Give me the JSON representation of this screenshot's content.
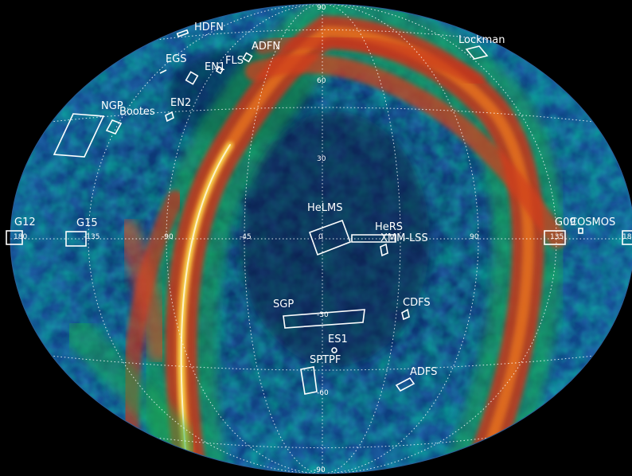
{
  "map": {
    "projection": "aitoff",
    "colors": {
      "background": "#000000",
      "low": "#06204a",
      "mid_low": "#0f5aa0",
      "mid": "#1faa55",
      "high": "#d4402a",
      "peak": "#fff25a"
    },
    "grid_labels": {
      "lat_90": "90",
      "lat_60": "60",
      "lat_30": "30",
      "lat_m30": "-30",
      "lat_m60": "-60",
      "lat_m90": "-90",
      "lon_m135": "-135",
      "lon_m90": "-90",
      "lon_m45": "-45",
      "lon_0": "0",
      "lon_90": "90",
      "lon_135": "135",
      "lon_180_l": "180",
      "lon_180_r": "180"
    },
    "fields": {
      "hdfn": "HDFN",
      "egs": "EGS",
      "en1": "EN1",
      "fls": "FLS",
      "adfn": "ADFN",
      "lockman": "Lockman",
      "ngp": "NGP",
      "bootes": "Bootes",
      "en2": "EN2",
      "g12": "G12",
      "g15": "G15",
      "helms": "HeLMS",
      "hers": "HeRS",
      "xmm_lss": "XMM-LSS",
      "g09": "G09",
      "cosmos": "COSMOS",
      "sgp": "SGP",
      "cdfs": "CDFS",
      "es1": "ES1",
      "sptpf": "SPTPF",
      "adfs": "ADFS"
    }
  }
}
